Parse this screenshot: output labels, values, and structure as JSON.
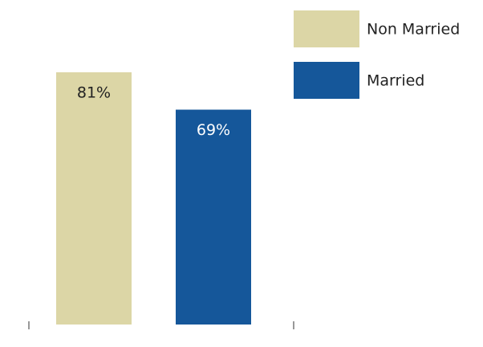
{
  "chart_data": {
    "type": "bar",
    "categories": [
      null
    ],
    "series": [
      {
        "name": "Non Married",
        "color": "#dcd6a6",
        "values": [
          81
        ],
        "value_labels": [
          "81%"
        ]
      },
      {
        "name": "Married",
        "color": "#15579a",
        "values": [
          69
        ],
        "value_labels": [
          "69%"
        ]
      }
    ]
  }
}
